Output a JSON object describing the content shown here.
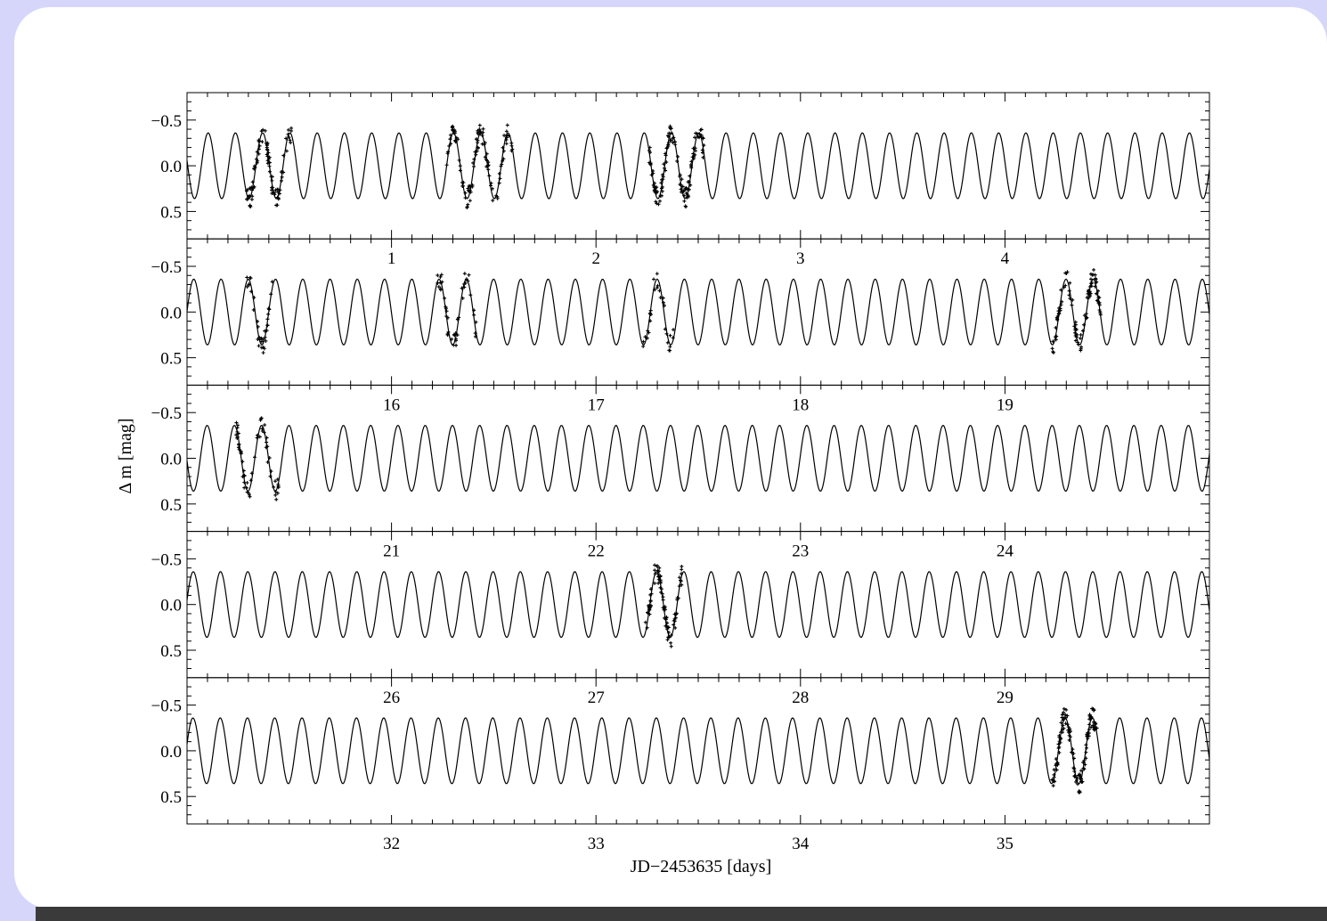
{
  "colors": {
    "background": "#d6d6fb",
    "card": "#ffffff",
    "bottom_bar": "#3a3a3a",
    "ink": "#000000"
  },
  "chart_data": {
    "type": "scatter",
    "title": "",
    "xlabel": "JD−2453635 [days]",
    "ylabel": "Δ m [mag]",
    "y_inverted": true,
    "ylim": [
      0.8,
      -0.8
    ],
    "yticks": [
      -0.5,
      0.0,
      0.5
    ],
    "ytick_labels": [
      "−0.5",
      "0.0",
      "0.5"
    ],
    "model_curve": {
      "type": "sinusoid",
      "amplitude_mag": 0.36,
      "period_days": 0.1333
    },
    "panels": [
      {
        "xlim": [
          0.0,
          5.0
        ],
        "top_tick_labels": [],
        "bottom_tick_labels": [
          "1",
          "2",
          "3",
          "4"
        ],
        "bottom_ticks": [
          1,
          2,
          3,
          4
        ],
        "points": [
          {
            "x0": 0.29,
            "x1": 0.52,
            "n": 90,
            "phase": "min"
          },
          {
            "x0": 1.27,
            "x1": 1.6,
            "n": 110,
            "phase": "rise_max"
          },
          {
            "x0": 2.26,
            "x1": 2.53,
            "n": 120,
            "phase": "fall"
          }
        ]
      },
      {
        "xlim": [
          15.0,
          20.0
        ],
        "top_tick_labels": [
          "1",
          "2",
          "3",
          "4"
        ],
        "bottom_tick_labels": [
          "16",
          "17",
          "18",
          "19"
        ],
        "bottom_ticks": [
          16,
          17,
          18,
          19
        ],
        "points": [
          {
            "x0": 15.29,
            "x1": 15.42,
            "n": 35,
            "phase": "fall"
          },
          {
            "x0": 16.22,
            "x1": 16.42,
            "n": 45,
            "phase": "min"
          },
          {
            "x0": 17.23,
            "x1": 17.38,
            "n": 30,
            "phase": "rise"
          },
          {
            "x0": 19.23,
            "x1": 19.47,
            "n": 100,
            "phase": "rise_max"
          }
        ]
      },
      {
        "xlim": [
          20.0,
          25.0
        ],
        "top_tick_labels": [
          "16",
          "17",
          "18",
          "19"
        ],
        "bottom_tick_labels": [
          "21",
          "22",
          "23",
          "24"
        ],
        "bottom_ticks": [
          21,
          22,
          23,
          24
        ],
        "points": [
          {
            "x0": 20.24,
            "x1": 20.45,
            "n": 60,
            "phase": "fall"
          }
        ]
      },
      {
        "xlim": [
          25.0,
          30.0
        ],
        "top_tick_labels": [
          "21",
          "22",
          "23",
          "24"
        ],
        "bottom_tick_labels": [
          "26",
          "27",
          "28",
          "29"
        ],
        "bottom_ticks": [
          26,
          27,
          28,
          29
        ],
        "points": [
          {
            "x0": 27.24,
            "x1": 27.42,
            "n": 90,
            "phase": "fall"
          }
        ]
      },
      {
        "xlim": [
          31.0,
          36.0
        ],
        "top_tick_labels": [
          "26",
          "27",
          "28",
          "29"
        ],
        "bottom_tick_labels": [
          "32",
          "33",
          "34",
          "35"
        ],
        "bottom_ticks": [
          32,
          33,
          34,
          35
        ],
        "points": [
          {
            "x0": 35.23,
            "x1": 35.45,
            "n": 130,
            "phase": "rise_max"
          }
        ]
      }
    ]
  }
}
